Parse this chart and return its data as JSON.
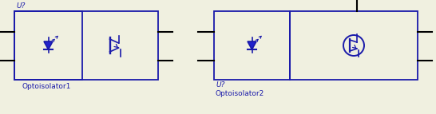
{
  "bg_color": "#f0f0e0",
  "line_color": "#1a1aaa",
  "fill_color": "#2222cc",
  "label1": "Optoisolator1",
  "label2": "Optoisolator2",
  "ref1": "U?",
  "ref2": "U?",
  "figsize": [
    5.46,
    1.43
  ],
  "dpi": 100
}
